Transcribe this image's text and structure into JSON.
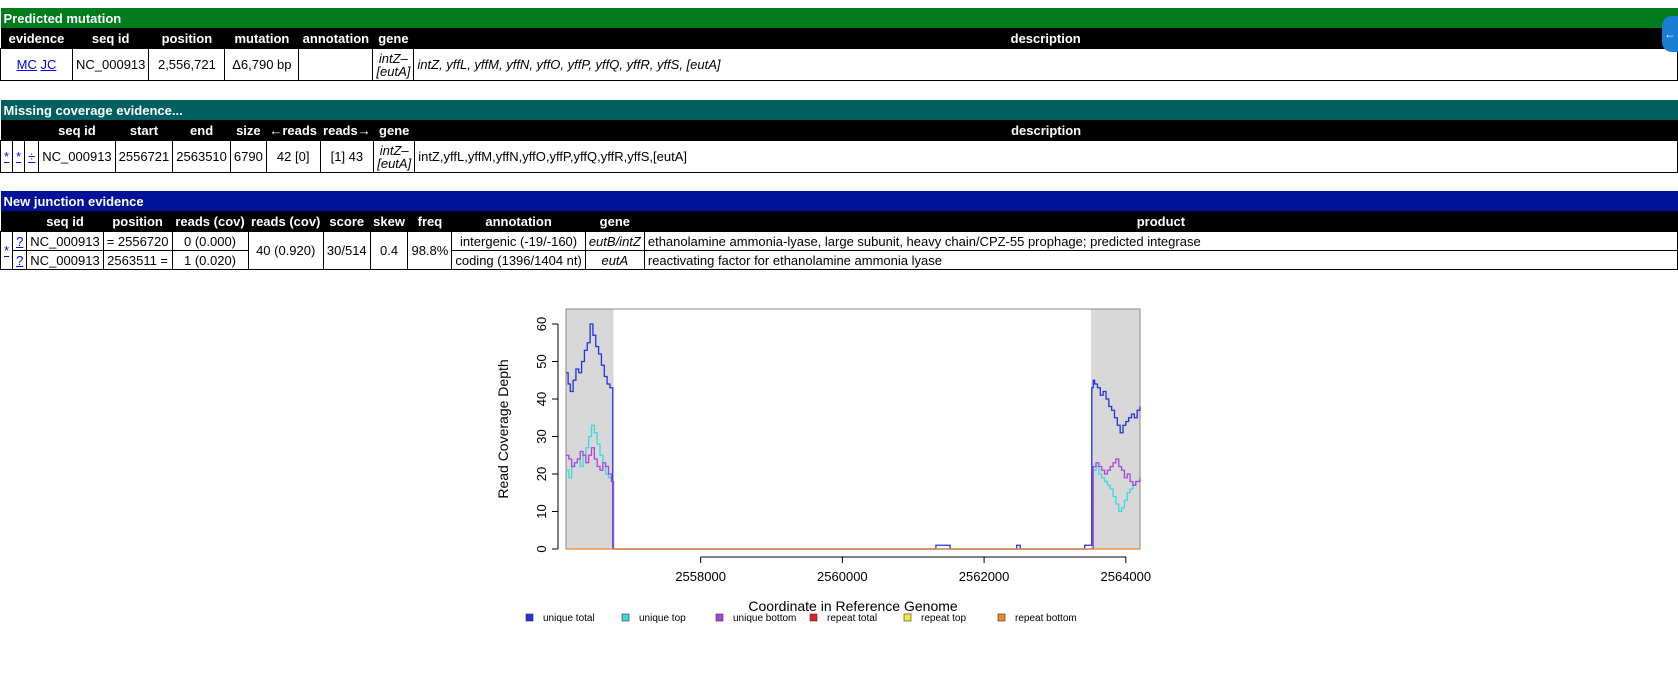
{
  "predicted": {
    "title": "Predicted mutation",
    "headers": [
      "evidence",
      "seq id",
      "position",
      "mutation",
      "annotation",
      "gene",
      "description"
    ],
    "evidence_links": [
      "MC",
      "JC"
    ],
    "seq_id": "NC_000913",
    "position": "2,556,721",
    "mutation": "Δ6,790 bp",
    "annotation": "",
    "gene_line1": "intZ–",
    "gene_line2": "[eutA]",
    "description": "intZ, yffL, yffM, yffN, yffO, yffP, yffQ, yffR, yffS, [eutA]"
  },
  "missing": {
    "title": "Missing coverage evidence...",
    "headers": [
      "",
      "",
      "",
      "seq id",
      "start",
      "end",
      "size",
      "←reads",
      "reads→",
      "gene",
      "description"
    ],
    "links": [
      "*",
      "*",
      "÷"
    ],
    "seq_id": "NC_000913",
    "start": "2556721",
    "end": "2563510",
    "size": "6790",
    "reads_left": "42 [0]",
    "reads_right": "[1] 43",
    "gene_line1": "intZ–",
    "gene_line2": "[eutA]",
    "description": "intZ,yffL,yffM,yffN,yffO,yffP,yffQ,yffR,yffS,[eutA]"
  },
  "junction": {
    "title": "New junction evidence",
    "headers": [
      "",
      "",
      "seq id",
      "position",
      "reads (cov)",
      "reads (cov)",
      "score",
      "skew",
      "freq",
      "annotation",
      "gene",
      "product"
    ],
    "star": "*",
    "reads_cov_total": "40 (0.920)",
    "score": "30/514",
    "skew": "0.4",
    "freq": "98.8%",
    "rows": [
      {
        "q": "?",
        "seq_id": "NC_000913",
        "position": "= 2556720",
        "reads": "0 (0.000)",
        "annotation": "intergenic (-19/-160)",
        "gene": "eutB/intZ",
        "product": "ethanolamine ammonia-lyase, large subunit, heavy chain/CPZ-55 prophage; predicted integrase"
      },
      {
        "q": "?",
        "seq_id": "NC_000913",
        "position": "2563511 =",
        "reads": "1 (0.020)",
        "annotation": "coding (1396/1404 nt)",
        "gene": "eutA",
        "product": "reactivating factor for ethanolamine ammonia lyase"
      }
    ]
  },
  "chart_data": {
    "type": "line",
    "xlabel": "Coordinate in Reference Genome",
    "ylabel": "Read Coverage Depth",
    "xlim": [
      2556100,
      2564200
    ],
    "ylim": [
      0,
      64
    ],
    "xticks": [
      2558000,
      2560000,
      2562000,
      2564000
    ],
    "yticks": [
      0,
      10,
      20,
      30,
      40,
      50,
      60
    ],
    "shaded_regions": [
      [
        2556100,
        2556770
      ],
      [
        2563510,
        2564200
      ]
    ],
    "series": [
      {
        "name": "unique total",
        "color": "#2233dd",
        "x": [
          2556100,
          2556130,
          2556160,
          2556200,
          2556240,
          2556280,
          2556320,
          2556360,
          2556400,
          2556440,
          2556480,
          2556520,
          2556560,
          2556600,
          2556640,
          2556680,
          2556720,
          2556740,
          2556760,
          2556780,
          2557500,
          2558500,
          2559500,
          2560500,
          2561300,
          2561320,
          2561500,
          2561520,
          2562450,
          2562460,
          2562500,
          2562510,
          2563400,
          2563420,
          2563500,
          2563520,
          2563540,
          2563560,
          2563600,
          2563640,
          2563680,
          2563720,
          2563760,
          2563800,
          2563840,
          2563880,
          2563920,
          2563960,
          2564000,
          2564040,
          2564080,
          2564120,
          2564160,
          2564200
        ],
        "y": [
          47,
          44,
          42,
          45,
          48,
          47,
          50,
          53,
          55,
          60,
          57,
          54,
          52,
          49,
          46,
          44,
          43,
          43,
          0,
          0,
          0,
          0,
          0,
          0,
          0,
          1,
          1,
          0,
          0,
          1,
          1,
          0,
          0,
          1,
          1,
          43,
          45,
          44,
          43,
          41,
          42,
          40,
          38,
          37,
          35,
          33,
          31,
          33,
          34,
          35,
          36,
          35,
          37,
          38
        ]
      },
      {
        "name": "unique top",
        "color": "#33dddd",
        "x": [
          2556100,
          2556140,
          2556180,
          2556220,
          2556260,
          2556300,
          2556340,
          2556380,
          2556420,
          2556460,
          2556500,
          2556540,
          2556580,
          2556620,
          2556660,
          2556700,
          2556740,
          2556770,
          2563510,
          2563540,
          2563580,
          2563620,
          2563660,
          2563700,
          2563740,
          2563780,
          2563820,
          2563860,
          2563900,
          2563940,
          2563980,
          2564020,
          2564060,
          2564100,
          2564140,
          2564200
        ],
        "y": [
          21,
          19,
          22,
          23,
          24,
          22,
          25,
          27,
          30,
          33,
          31,
          28,
          25,
          22,
          20,
          19,
          18,
          0,
          0,
          21,
          22,
          20,
          19,
          18,
          17,
          16,
          14,
          12,
          10,
          11,
          13,
          15,
          16,
          17,
          18,
          19
        ]
      },
      {
        "name": "unique bottom",
        "color": "#aa44dd",
        "x": [
          2556100,
          2556140,
          2556180,
          2556220,
          2556260,
          2556300,
          2556340,
          2556380,
          2556420,
          2556460,
          2556500,
          2556540,
          2556580,
          2556620,
          2556660,
          2556700,
          2556740,
          2556770,
          2563510,
          2563540,
          2563580,
          2563620,
          2563660,
          2563700,
          2563740,
          2563780,
          2563820,
          2563860,
          2563900,
          2563940,
          2563980,
          2564020,
          2564060,
          2564100,
          2564140,
          2564200
        ],
        "y": [
          25,
          24,
          22,
          23,
          24,
          26,
          25,
          23,
          25,
          27,
          24,
          22,
          21,
          23,
          22,
          20,
          18,
          0,
          0,
          22,
          23,
          22,
          21,
          20,
          21,
          22,
          23,
          24,
          22,
          21,
          19,
          20,
          18,
          17,
          18,
          19
        ]
      },
      {
        "name": "repeat total",
        "color": "#dd2222",
        "x": [],
        "y": []
      },
      {
        "name": "repeat top",
        "color": "#eeee33",
        "x": [],
        "y": []
      },
      {
        "name": "repeat bottom",
        "color": "#ee8822",
        "x": [
          2556100,
          2564200
        ],
        "y": [
          0,
          0
        ]
      }
    ]
  },
  "legend": [
    "unique total",
    "unique top",
    "unique bottom",
    "repeat total",
    "repeat top",
    "repeat bottom"
  ],
  "legend_colors": [
    "#2233dd",
    "#33dddd",
    "#aa44dd",
    "#dd2222",
    "#eeee33",
    "#ee8822"
  ]
}
